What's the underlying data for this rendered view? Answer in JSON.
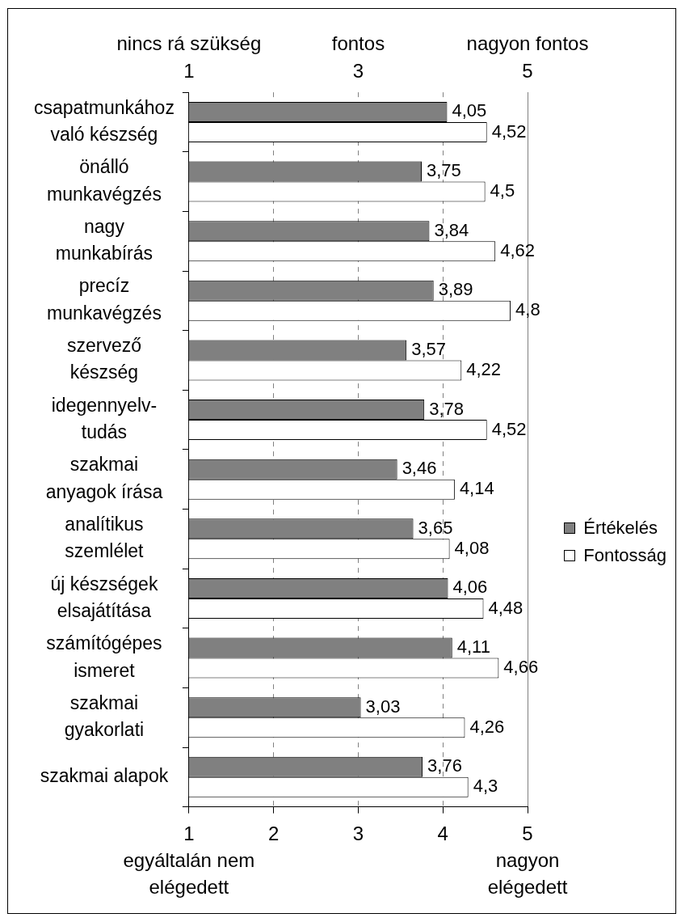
{
  "chart_data": {
    "type": "bar",
    "orientation": "horizontal",
    "categories": [
      "csapatmunkához\nvaló készség",
      "önálló\nmunkavégzés",
      "nagy\nmunkabírás",
      "precíz\nmunkavégzés",
      "szervező\nkészség",
      "idegennyelv-\ntudás",
      "szakmai\nanyagok írása",
      "analítikus\nszemlélet",
      "új készségek\nelsajátítása",
      "számítógépes\nismeret",
      "szakmai\ngyakorlati",
      "szakmai alapok"
    ],
    "series": [
      {
        "name": "Értékelés",
        "color": "#808080",
        "values": [
          4.05,
          3.75,
          3.84,
          3.89,
          3.57,
          3.78,
          3.46,
          3.65,
          4.06,
          4.11,
          3.03,
          3.76
        ],
        "value_labels": [
          "4,05",
          "3,75",
          "3,84",
          "3,89",
          "3,57",
          "3,78",
          "3,46",
          "3,65",
          "4,06",
          "4,11",
          "3,03",
          "3,76"
        ]
      },
      {
        "name": "Fontosság",
        "color": "#ffffff",
        "values": [
          4.52,
          4.5,
          4.62,
          4.8,
          4.22,
          4.52,
          4.14,
          4.08,
          4.48,
          4.66,
          4.26,
          4.3
        ],
        "value_labels": [
          "4,52",
          "4,5",
          "4,62",
          "4,8",
          "4,22",
          "4,52",
          "4,14",
          "4,08",
          "4,48",
          "4,66",
          "4,26",
          "4,3"
        ]
      }
    ],
    "xlim": [
      1,
      5
    ],
    "xticks": [
      {
        "value": 1,
        "label": "1\negyáltalán nem\nelégedett"
      },
      2,
      3,
      4,
      {
        "value": 5,
        "label": "5\nnagyon\nelégedett"
      }
    ],
    "x2lim": [
      1,
      5
    ],
    "x2ticks": [
      1,
      3,
      5
    ],
    "annotations": [
      "nincs rá szükség",
      "fontos",
      "nagyon fontos"
    ],
    "grid": "x",
    "legend": "right"
  }
}
